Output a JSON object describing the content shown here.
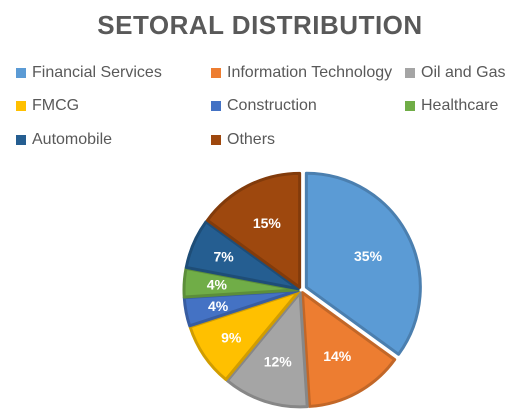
{
  "chart_data": {
    "type": "pie",
    "title": "SETORAL DISTRIBUTION",
    "legend_position": "top",
    "categories": [
      "Financial Services",
      "Information Technology",
      "Oil and Gas",
      "FMCG",
      "Construction",
      "Healthcare",
      "Automobile",
      "Others"
    ],
    "values": [
      35,
      14,
      12,
      9,
      4,
      4,
      7,
      15
    ],
    "data_labels": [
      "35%",
      "14%",
      "12%",
      "9%",
      "4%",
      "4%",
      "7%",
      "15%"
    ],
    "colors": [
      "#5b9bd5",
      "#ed7d31",
      "#a5a5a5",
      "#ffc000",
      "#4472c4",
      "#70ad47",
      "#255e91",
      "#9e480e"
    ]
  }
}
